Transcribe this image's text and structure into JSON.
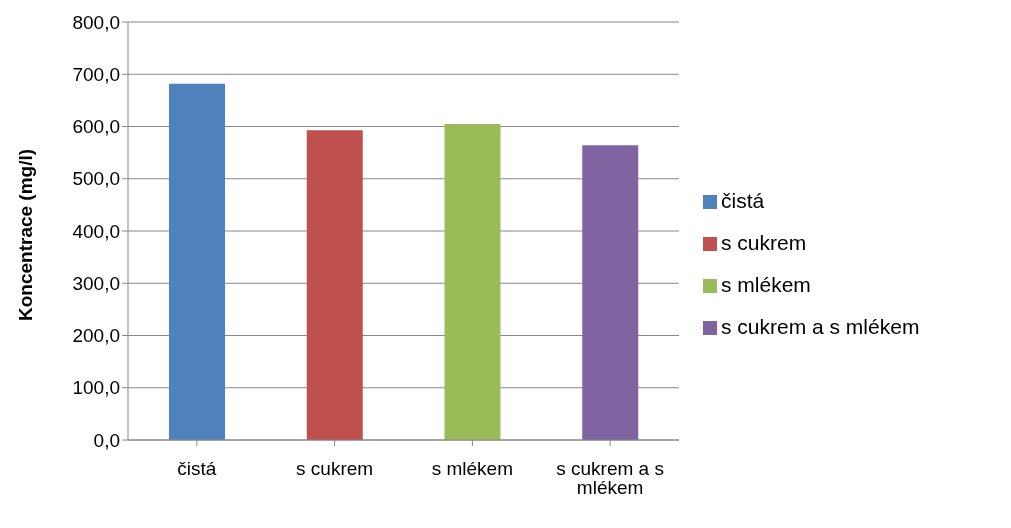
{
  "chart_data": {
    "type": "bar",
    "ylabel": "Koncentrace (mg/l)",
    "categories": [
      "čistá",
      "s cukrem",
      "s mlékem",
      "s cukrem a s mlékem"
    ],
    "series": [
      {
        "name": "čistá",
        "color": "#4f81bd",
        "values": [
          682,
          null,
          null,
          null
        ]
      },
      {
        "name": "s cukrem",
        "color": "#c0504d",
        "values": [
          null,
          593,
          null,
          null
        ]
      },
      {
        "name": "s mlékem",
        "color": "#9bbb59",
        "values": [
          null,
          null,
          605,
          null
        ]
      },
      {
        "name": "s cukrem a s mlékem",
        "color": "#8064a2",
        "values": [
          null,
          null,
          null,
          564
        ]
      }
    ],
    "ylim": [
      0,
      800
    ],
    "yticks": [
      {
        "value": 0,
        "label": "0,0"
      },
      {
        "value": 100,
        "label": "100,0"
      },
      {
        "value": 200,
        "label": "200,0"
      },
      {
        "value": 300,
        "label": "300,0"
      },
      {
        "value": 400,
        "label": "400,0"
      },
      {
        "value": 500,
        "label": "500,0"
      },
      {
        "value": 600,
        "label": "600,0"
      },
      {
        "value": 700,
        "label": "700,0"
      },
      {
        "value": 800,
        "label": "800,0"
      }
    ],
    "grid": "y",
    "legend": "right"
  }
}
